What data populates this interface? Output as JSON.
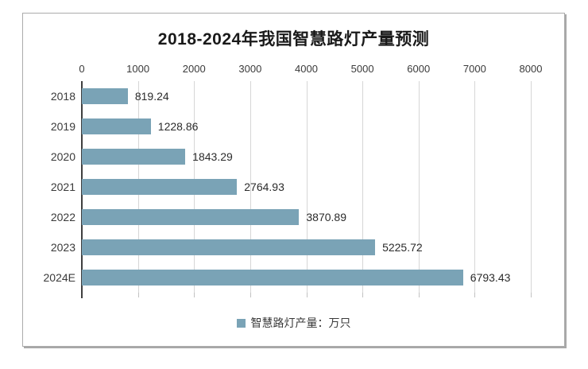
{
  "colors": {
    "bar": "#7aa3b6",
    "gridline": "#d6d6d6",
    "axis_line": "#3f3f3f",
    "text": "#3a3a3a",
    "border": "#ababab",
    "background": "#ffffff"
  },
  "legend": {
    "label": "智慧路灯产量：万只"
  },
  "chart_data": {
    "type": "bar",
    "orientation": "horizontal",
    "title": "2018-2024年我国智慧路灯产量预测",
    "categories": [
      "2018",
      "2019",
      "2020",
      "2021",
      "2022",
      "2023",
      "2024E"
    ],
    "values": [
      819.24,
      1228.86,
      1843.29,
      2764.93,
      3870.89,
      5225.72,
      6793.43
    ],
    "unit": "万只",
    "xlabel": "",
    "ylabel": "",
    "xlim": [
      0,
      8000
    ],
    "x_ticks": [
      0,
      1000,
      2000,
      3000,
      4000,
      5000,
      6000,
      7000,
      8000
    ],
    "x_axis_position": "top",
    "grid": true,
    "legend": [
      "智慧路灯产量：万只"
    ],
    "legend_position": "bottom"
  }
}
